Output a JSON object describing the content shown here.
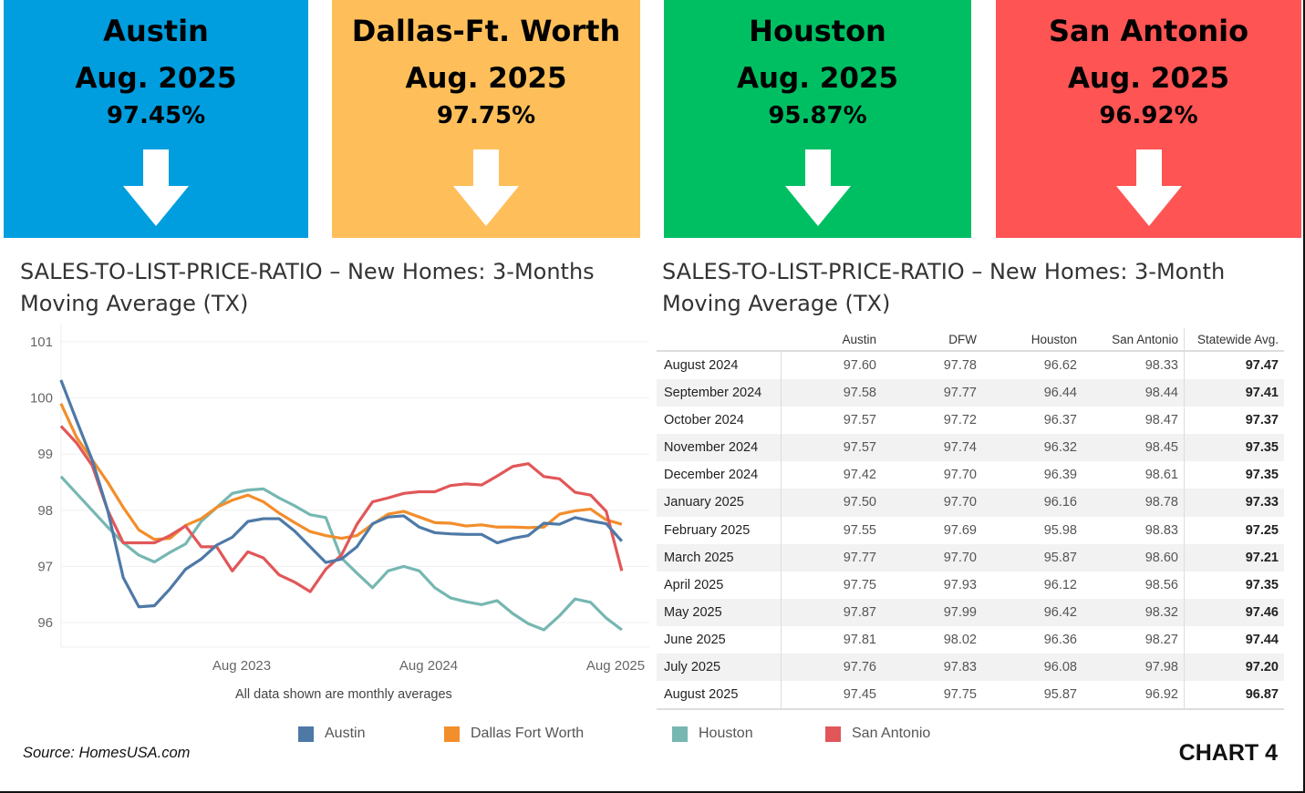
{
  "cards": [
    {
      "name": "Austin",
      "date": "Aug. 2025",
      "value": "97.45%",
      "color": "#009EDF",
      "arrow": "arrow-down"
    },
    {
      "name": "Dallas-Ft. Worth",
      "date": "Aug. 2025",
      "value": "97.75%",
      "color": "#FEBF5A",
      "arrow": "arrow-down"
    },
    {
      "name": "Houston",
      "date": "Aug. 2025",
      "value": "95.87%",
      "color": "#00BF63",
      "arrow": "arrow-down"
    },
    {
      "name": "San Antonio",
      "date": "Aug. 2025",
      "value": "96.92%",
      "color": "#FF5454",
      "arrow": "arrow-down"
    }
  ],
  "left_title_1": "SALES-TO-LIST-PRICE-RATIO – New Homes: 3-Months",
  "left_title_2": "Moving Average (TX)",
  "right_title_1": "SALES-TO-LIST-PRICE-RATIO – New Homes:  3-Month",
  "right_title_2": "Moving Average (TX)",
  "note": "All data shown are monthly averages",
  "source": "Source: HomesUSA.com",
  "chart_label": "CHART 4",
  "chart_data": [
    {
      "type": "line",
      "x_start": "Aug 2022",
      "x_end": "Aug 2025",
      "x_step": "month",
      "xticks": [
        "Aug 2023",
        "Aug 2024",
        "Aug 2025"
      ],
      "yticks": [
        96,
        97,
        98,
        99,
        100,
        101
      ],
      "ylim": [
        95.6,
        101
      ],
      "grid": true,
      "legend_position": "bottom",
      "series": [
        {
          "name": "Austin",
          "color": "#4E79A7",
          "values": [
            100.32,
            99.6,
            98.9,
            98.0,
            96.8,
            96.28,
            96.3,
            96.6,
            96.95,
            97.13,
            97.38,
            97.52,
            97.8,
            97.85,
            97.85,
            97.63,
            97.35,
            97.07,
            97.13,
            97.35,
            97.76,
            97.88,
            97.9,
            97.7,
            97.6,
            97.58,
            97.57,
            97.57,
            97.42,
            97.5,
            97.55,
            97.77,
            97.75,
            97.87,
            97.81,
            97.76,
            97.45
          ]
        },
        {
          "name": "Dallas Fort Worth",
          "color": "#F28E2B",
          "values": [
            99.9,
            99.3,
            98.9,
            98.5,
            98.05,
            97.65,
            97.48,
            97.5,
            97.73,
            97.85,
            98.05,
            98.18,
            98.27,
            98.15,
            97.95,
            97.78,
            97.62,
            97.55,
            97.5,
            97.55,
            97.75,
            97.93,
            97.98,
            97.88,
            97.78,
            97.77,
            97.72,
            97.74,
            97.7,
            97.7,
            97.69,
            97.7,
            97.93,
            97.99,
            98.02,
            97.83,
            97.75
          ]
        },
        {
          "name": "Houston",
          "color": "#76B7B2",
          "values": [
            98.6,
            98.3,
            98.0,
            97.7,
            97.42,
            97.2,
            97.08,
            97.25,
            97.4,
            97.8,
            98.05,
            98.3,
            98.36,
            98.38,
            98.22,
            98.08,
            97.92,
            97.87,
            97.15,
            96.88,
            96.62,
            96.92,
            97.0,
            96.92,
            96.62,
            96.44,
            96.37,
            96.32,
            96.39,
            96.16,
            95.98,
            95.87,
            96.12,
            96.42,
            96.36,
            96.08,
            95.87
          ]
        },
        {
          "name": "San Antonio",
          "color": "#E15759",
          "values": [
            99.5,
            99.2,
            98.8,
            98.0,
            97.42,
            97.42,
            97.42,
            97.55,
            97.72,
            97.35,
            97.35,
            96.92,
            97.26,
            97.15,
            96.85,
            96.72,
            96.55,
            96.95,
            97.2,
            97.75,
            98.15,
            98.22,
            98.3,
            98.33,
            98.33,
            98.44,
            98.47,
            98.45,
            98.61,
            98.78,
            98.83,
            98.6,
            98.56,
            98.32,
            98.27,
            97.98,
            96.92
          ]
        }
      ]
    },
    {
      "type": "table",
      "columns": [
        "",
        "Austin",
        "DFW",
        "Houston",
        "San Antonio",
        "Statewide Avg."
      ],
      "rows": [
        [
          "August 2024",
          "97.60",
          "97.78",
          "96.62",
          "98.33",
          "97.47"
        ],
        [
          "September 2024",
          "97.58",
          "97.77",
          "96.44",
          "98.44",
          "97.41"
        ],
        [
          "October 2024",
          "97.57",
          "97.72",
          "96.37",
          "98.47",
          "97.37"
        ],
        [
          "November 2024",
          "97.57",
          "97.74",
          "96.32",
          "98.45",
          "97.35"
        ],
        [
          "December 2024",
          "97.42",
          "97.70",
          "96.39",
          "98.61",
          "97.35"
        ],
        [
          "January 2025",
          "97.50",
          "97.70",
          "96.16",
          "98.78",
          "97.33"
        ],
        [
          "February 2025",
          "97.55",
          "97.69",
          "95.98",
          "98.83",
          "97.25"
        ],
        [
          "March 2025",
          "97.77",
          "97.70",
          "95.87",
          "98.60",
          "97.21"
        ],
        [
          "April 2025",
          "97.75",
          "97.93",
          "96.12",
          "98.56",
          "97.35"
        ],
        [
          "May 2025",
          "97.87",
          "97.99",
          "96.42",
          "98.32",
          "97.46"
        ],
        [
          "June 2025",
          "97.81",
          "98.02",
          "96.36",
          "98.27",
          "97.44"
        ],
        [
          "July 2025",
          "97.76",
          "97.83",
          "96.08",
          "97.98",
          "97.20"
        ],
        [
          "August 2025",
          "97.45",
          "97.75",
          "95.87",
          "96.92",
          "96.87"
        ]
      ]
    }
  ]
}
